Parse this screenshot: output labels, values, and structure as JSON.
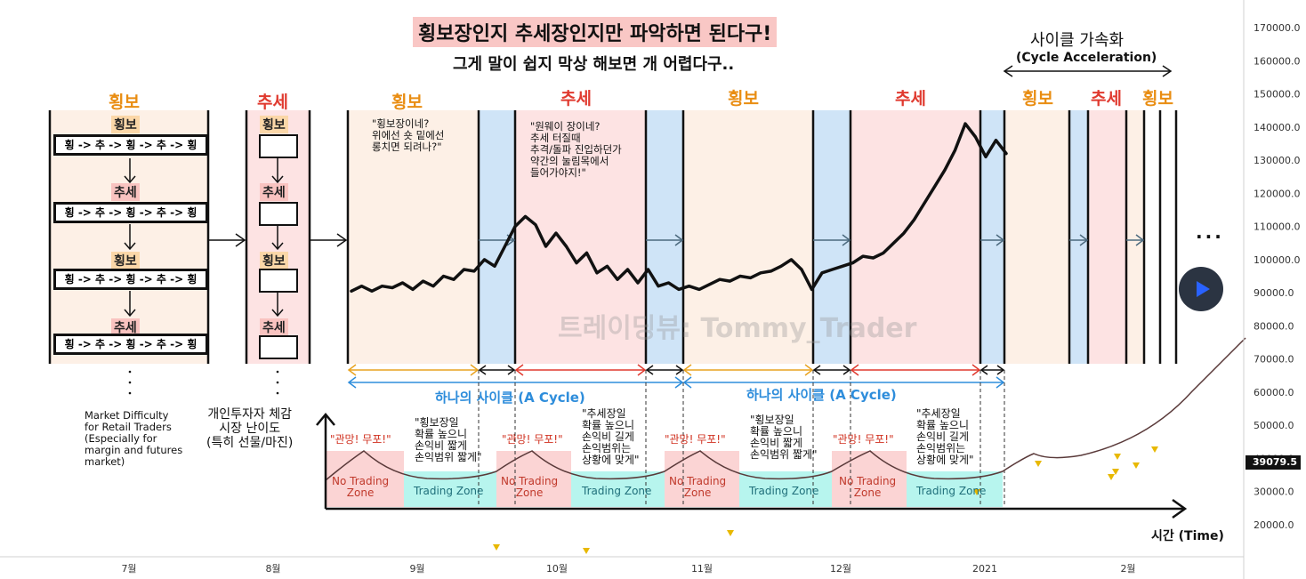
{
  "title": "횡보장인지 추세장인지만 파악하면 된다구!",
  "subtitle": "그게 말이 쉽지 막상 해보면 개 어렵다구..",
  "cycle_acceleration": {
    "title": "사이클 가속화",
    "subtitle": "(Cycle Acceleration)"
  },
  "phase_labels": {
    "side": "횡보",
    "trend": "추세"
  },
  "quotes": {
    "sideways": "\"횡보장이네?\n위에선 숏 밑에선\n롱치면 되려나?\"",
    "trend": "\"원웨이 장이네?\n추세 터질때\n추격/돌파 진입하던가\n약간의 눌림목에서\n들어가야지!\""
  },
  "sequence_text": "횡 -> 추 -> 횡 -> 추 -> 횡",
  "cycle_label": "하나의 사이클 (A Cycle)",
  "watermark": "트레이딩뷰: Tommy_Trader",
  "difficulty": {
    "market": "Market Difficulty\nfor Retail Traders\n(Especially for\nmargin and futures\nmarket)",
    "retail": "개인투자자 체감\n시장 난이도\n(특히 선물/마진)",
    "panic": "\"관망! 무포!\"",
    "no_trading": "No Trading\nZone",
    "trading": "Trading Zone",
    "side_caption": "\"횡보장일\n확률 높으니\n손익비 짧게\n손익범위 짧게\"",
    "trend_caption": "\"추세장일\n확률 높으니\n손익비 길게\n손익범위는\n상황에 맞게\"",
    "time_label": "시간 (Time)"
  },
  "colors": {
    "side_bg": "#fdf0e6",
    "trend_bg": "#fde3e3",
    "transition_bg": "#cfe4f7",
    "no_trading_bg": "#fbd4d4",
    "trading_bg": "#b7f5ee",
    "side_orange": "#e98d12",
    "trend_red": "#e03a2f",
    "cycle_blue": "#2e8ddb"
  },
  "chart_data": {
    "type": "line",
    "y_ticks": [
      "170000.0",
      "160000.0",
      "150000.0",
      "140000.0",
      "130000.0",
      "120000.0",
      "110000.0",
      "100000.0",
      "90000.0",
      "80000.0",
      "70000.0",
      "60000.0",
      "50000.0",
      "40000.0",
      "30000.0",
      "20000.0"
    ],
    "x_ticks": [
      "7월",
      "8월",
      "9월",
      "10월",
      "11월",
      "12월",
      "2021",
      "2월"
    ],
    "ylim": [
      15000,
      175000
    ],
    "current_price": "39079.5",
    "series": [
      {
        "values": [
          [
            0,
            90500
          ],
          [
            1,
            92000
          ],
          [
            2,
            90500
          ],
          [
            3,
            92000
          ],
          [
            4,
            91500
          ],
          [
            5,
            93000
          ],
          [
            6,
            91000
          ],
          [
            7,
            93500
          ],
          [
            8,
            92000
          ],
          [
            9,
            95000
          ],
          [
            10,
            94000
          ],
          [
            11,
            97000
          ],
          [
            12,
            96500
          ],
          [
            13,
            100000
          ],
          [
            14,
            98000
          ],
          [
            15,
            104000
          ],
          [
            16,
            110000
          ],
          [
            17,
            113000
          ],
          [
            18,
            110500
          ],
          [
            19,
            104000
          ],
          [
            20,
            108000
          ],
          [
            21,
            104000
          ],
          [
            22,
            99000
          ],
          [
            23,
            102000
          ],
          [
            24,
            96000
          ],
          [
            25,
            98000
          ],
          [
            26,
            94000
          ],
          [
            27,
            97000
          ],
          [
            28,
            93000
          ],
          [
            29,
            97000
          ],
          [
            30,
            92000
          ],
          [
            31,
            93000
          ],
          [
            32,
            91000
          ],
          [
            33,
            92000
          ],
          [
            34,
            91000
          ],
          [
            35,
            92500
          ],
          [
            36,
            94000
          ],
          [
            37,
            93500
          ],
          [
            38,
            95000
          ],
          [
            39,
            94500
          ],
          [
            40,
            96000
          ],
          [
            41,
            96500
          ],
          [
            42,
            98000
          ],
          [
            43,
            100000
          ],
          [
            44,
            97000
          ],
          [
            45,
            91000
          ],
          [
            46,
            96000
          ],
          [
            47,
            97000
          ],
          [
            48,
            98000
          ],
          [
            49,
            99000
          ],
          [
            50,
            101000
          ],
          [
            51,
            100500
          ],
          [
            52,
            102000
          ],
          [
            53,
            105000
          ],
          [
            54,
            108000
          ],
          [
            55,
            112000
          ],
          [
            56,
            117000
          ],
          [
            57,
            122000
          ],
          [
            58,
            127000
          ],
          [
            59,
            133000
          ],
          [
            60,
            141000
          ],
          [
            61,
            137000
          ],
          [
            62,
            131000
          ],
          [
            63,
            136000
          ],
          [
            64,
            132000
          ]
        ]
      }
    ]
  }
}
